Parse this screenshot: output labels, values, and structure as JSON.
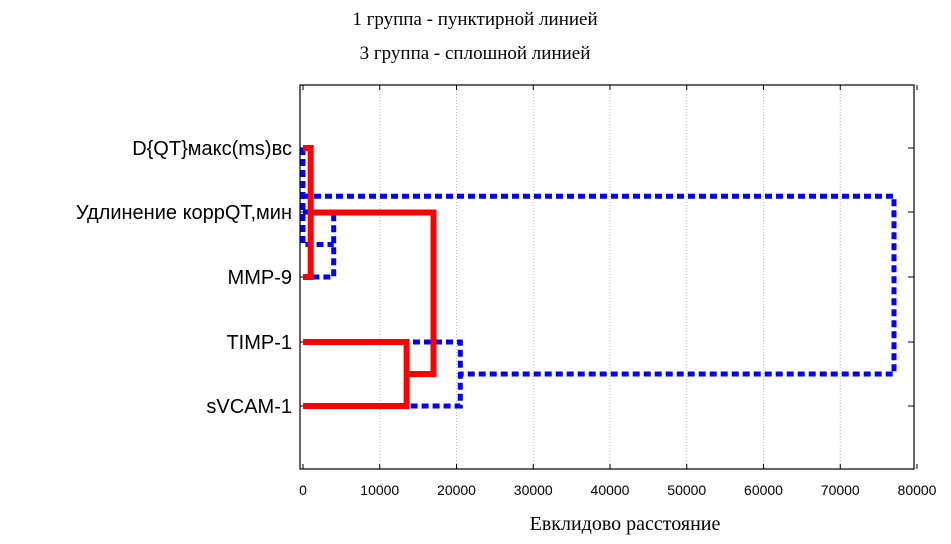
{
  "chart_data": {
    "type": "dendrogram",
    "title_lines": [
      "1 группа - пунктирной линией",
      "3 группа - сплошной линией"
    ],
    "xlabel": "Евклидово расстояние",
    "xlim": [
      0,
      80000
    ],
    "x_ticks": [
      0,
      10000,
      20000,
      30000,
      40000,
      50000,
      60000,
      70000,
      80000
    ],
    "grid": "vertical dotted",
    "leaves": [
      "D{QT}макс(ms)вс",
      "Удлинение коррQT,мин",
      "MMP-9",
      "TIMP-1",
      "sVCAM-1"
    ],
    "series": [
      {
        "style": "dotted",
        "color": "#0000ff",
        "merges": [
          {
            "a": "Удлинение коррQT,мин",
            "b": "MMP-9",
            "distance": 4000
          },
          {
            "a": "TIMP-1",
            "b": "sVCAM-1",
            "distance": 20500
          },
          {
            "a": "D{QT}макс(ms)вс",
            "b": "[Удлинение коррQT,мин + MMP-9]",
            "distance": 0
          },
          {
            "a": "[D{QT}макс(ms)вс + Удлинение коррQT,мин + MMP-9]",
            "b": "[TIMP-1 + sVCAM-1]",
            "distance": 77000
          }
        ]
      },
      {
        "style": "solid",
        "color": "#ff0000",
        "merges": [
          {
            "a": "D{QT}макс(ms)вс",
            "b": "MMP-9",
            "distance": 1000
          },
          {
            "a": "TIMP-1",
            "b": "sVCAM-1",
            "distance": 13500
          },
          {
            "a": "[D{QT}макс(ms)вс + MMP-9]",
            "b": "[TIMP-1 + sVCAM-1]",
            "distance": 17000
          }
        ]
      }
    ]
  }
}
